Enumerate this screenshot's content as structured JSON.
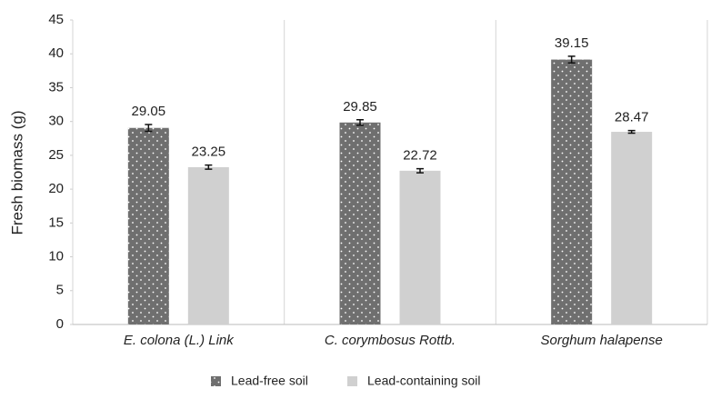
{
  "chart_data": {
    "type": "bar",
    "y_label": "Fresh biomass (g)",
    "categories": [
      "E. colona (L.) Link",
      "C. corymbosus Rottb.",
      "Sorghum halapense"
    ],
    "series": [
      {
        "name": "Lead-free soil",
        "color": "#6f6f6f",
        "pattern": "dots",
        "values": [
          29.05,
          29.85,
          39.15
        ],
        "errors": [
          0.5,
          0.4,
          0.5
        ]
      },
      {
        "name": "Lead-containing soil",
        "color": "#d0d0d0",
        "values": [
          23.25,
          22.72,
          28.47
        ],
        "errors": [
          0.3,
          0.3,
          0.2
        ]
      }
    ],
    "ylim": [
      0,
      45
    ],
    "yticks": [
      0,
      5,
      10,
      15,
      20,
      25,
      30,
      35,
      40,
      45
    ],
    "grid": false,
    "legend": "bottom"
  }
}
